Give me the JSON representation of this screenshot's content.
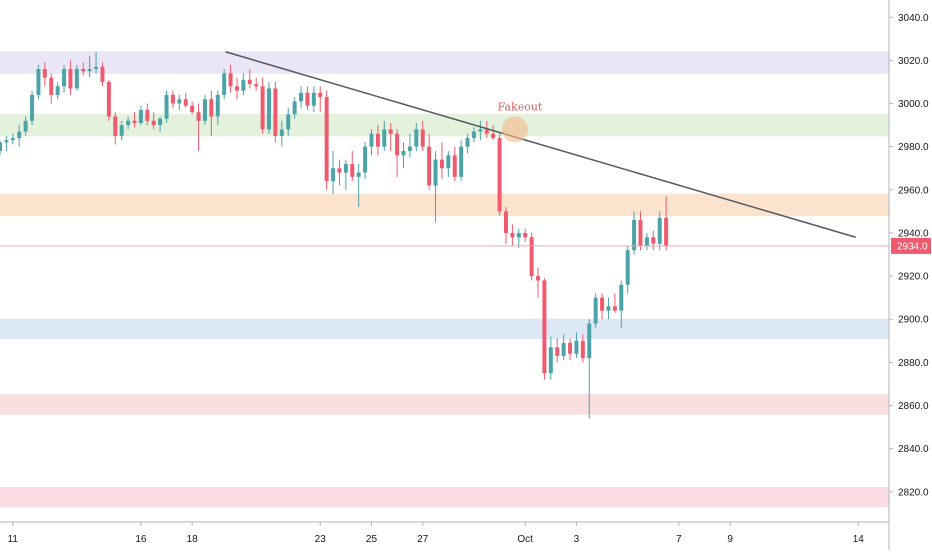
{
  "chart_data": {
    "type": "candlestick",
    "title": "",
    "xlabel": "",
    "ylabel": "",
    "ylim": [
      2806,
      3048
    ],
    "y_ticks": [
      3040,
      3020,
      3000,
      2980,
      2960,
      2940,
      2920,
      2900,
      2880,
      2860,
      2840,
      2820
    ],
    "y_tick_labels": [
      "3040.0",
      "3020.0",
      "3000.0",
      "2980.0",
      "2960.0",
      "2940.0",
      "2920.0",
      "2900.0",
      "2880.0",
      "2860.0",
      "2840.0",
      "2820.0"
    ],
    "x_ticks": [
      {
        "label": "11",
        "day": 11
      },
      {
        "label": "16",
        "day": 16
      },
      {
        "label": "18",
        "day": 18
      },
      {
        "label": "23",
        "day": 23
      },
      {
        "label": "25",
        "day": 25
      },
      {
        "label": "27",
        "day": 27
      },
      {
        "label": "Oct",
        "day": 31
      },
      {
        "label": "3",
        "day": 33
      },
      {
        "label": "7",
        "day": 37
      },
      {
        "label": "9",
        "day": 39
      },
      {
        "label": "14",
        "day": 44
      }
    ],
    "x_range": [
      10.5,
      45.2
    ],
    "grid": false,
    "current_price": {
      "value": 2934.0,
      "label": "2934.0",
      "color": "#ef5a6f"
    },
    "zones": [
      {
        "low": 3014,
        "high": 3024,
        "color": "#ebe6f6"
      },
      {
        "low": 2985,
        "high": 2995,
        "color": "#e3f1dd"
      },
      {
        "low": 2948,
        "high": 2958,
        "color": "#fbe3cd"
      },
      {
        "low": 2891,
        "high": 2900,
        "color": "#dde8f6"
      },
      {
        "low": 2856,
        "high": 2865,
        "color": "#f9dede"
      },
      {
        "low": 2813,
        "high": 2822,
        "color": "#fbdde3"
      }
    ],
    "trendline": {
      "x1": 19.3,
      "y1": 3024,
      "x2": 43.9,
      "y2": 2938,
      "color": "#555a60"
    },
    "annotation": {
      "text": "Fakeout",
      "x": 30.6,
      "y": 2988,
      "circle_color": "#f6b98a"
    },
    "candles_period_days": 0.25,
    "candles_start_day": 10.5,
    "bull_color": "#4ba3a8",
    "bear_color": "#ef5a6f",
    "candles": [
      [
        2978,
        2983,
        2976,
        2982
      ],
      [
        2982,
        2985,
        2978,
        2983
      ],
      [
        2983,
        2986,
        2981,
        2984
      ],
      [
        2984,
        2990,
        2980,
        2987
      ],
      [
        2987,
        2994,
        2985,
        2992
      ],
      [
        2992,
        3006,
        2990,
        3004
      ],
      [
        3004,
        3018,
        3002,
        3016
      ],
      [
        3016,
        3019,
        3008,
        3012
      ],
      [
        3012,
        3014,
        3000,
        3004
      ],
      [
        3004,
        3010,
        3002,
        3008
      ],
      [
        3008,
        3018,
        3005,
        3016
      ],
      [
        3016,
        3020,
        3004,
        3007
      ],
      [
        3007,
        3018,
        3006,
        3016
      ],
      [
        3016,
        3019,
        3013,
        3015
      ],
      [
        3015,
        3022,
        3012,
        3016
      ],
      [
        3016,
        3024,
        3014,
        3017
      ],
      [
        3017,
        3019,
        3008,
        3010
      ],
      [
        3010,
        3011,
        2992,
        2994
      ],
      [
        2994,
        2996,
        2981,
        2985
      ],
      [
        2985,
        2992,
        2983,
        2990
      ],
      [
        2990,
        2994,
        2988,
        2992
      ],
      [
        2992,
        2996,
        2989,
        2991
      ],
      [
        2991,
        2999,
        2990,
        2997
      ],
      [
        2997,
        3000,
        2990,
        2992
      ],
      [
        2992,
        2996,
        2988,
        2990
      ],
      [
        2990,
        2994,
        2987,
        2993
      ],
      [
        2993,
        3006,
        2991,
        3004
      ],
      [
        3004,
        3006,
        2998,
        3000
      ],
      [
        3000,
        3004,
        2997,
        3002
      ],
      [
        3002,
        3005,
        2998,
        2999
      ],
      [
        2999,
        3001,
        2995,
        2996
      ],
      [
        2996,
        3000,
        2978,
        2992
      ],
      [
        2992,
        3004,
        2990,
        3002
      ],
      [
        3002,
        3006,
        2985,
        2994
      ],
      [
        2994,
        3006,
        2990,
        3004
      ],
      [
        3004,
        3016,
        3002,
        3014
      ],
      [
        3014,
        3018,
        3005,
        3008
      ],
      [
        3008,
        3012,
        3002,
        3006
      ],
      [
        3006,
        3014,
        3004,
        3011
      ],
      [
        3011,
        3016,
        3007,
        3009
      ],
      [
        3009,
        3012,
        3006,
        3008
      ],
      [
        3008,
        3012,
        2986,
        2988
      ],
      [
        2988,
        3010,
        2986,
        3007
      ],
      [
        3007,
        3010,
        2982,
        2985
      ],
      [
        2985,
        2992,
        2980,
        2988
      ],
      [
        2988,
        2998,
        2985,
        2995
      ],
      [
        2995,
        3003,
        2993,
        3001
      ],
      [
        3001,
        3008,
        2998,
        3005
      ],
      [
        3005,
        3008,
        2997,
        2999
      ],
      [
        2999,
        3008,
        2996,
        3005
      ],
      [
        3005,
        3008,
        2996,
        3003
      ],
      [
        3003,
        3006,
        2960,
        2964
      ],
      [
        2964,
        2978,
        2958,
        2970
      ],
      [
        2970,
        2974,
        2962,
        2968
      ],
      [
        2968,
        2974,
        2960,
        2972
      ],
      [
        2972,
        2978,
        2964,
        2966
      ],
      [
        2966,
        2972,
        2952,
        2968
      ],
      [
        2968,
        2982,
        2965,
        2980
      ],
      [
        2980,
        2988,
        2976,
        2986
      ],
      [
        2986,
        2990,
        2976,
        2980
      ],
      [
        2980,
        2992,
        2978,
        2988
      ],
      [
        2988,
        2991,
        2978,
        2986
      ],
      [
        2986,
        2988,
        2966,
        2976
      ],
      [
        2976,
        2982,
        2970,
        2978
      ],
      [
        2978,
        2986,
        2975,
        2980
      ],
      [
        2980,
        2991,
        2978,
        2988
      ],
      [
        2988,
        2992,
        2978,
        2980
      ],
      [
        2980,
        2986,
        2960,
        2962
      ],
      [
        2962,
        2978,
        2945,
        2974
      ],
      [
        2974,
        2982,
        2965,
        2970
      ],
      [
        2970,
        2978,
        2966,
        2976
      ],
      [
        2976,
        2980,
        2964,
        2966
      ],
      [
        2966,
        2983,
        2964,
        2980
      ],
      [
        2980,
        2986,
        2977,
        2984
      ],
      [
        2984,
        2989,
        2982,
        2987
      ],
      [
        2987,
        2992,
        2983,
        2988
      ],
      [
        2988,
        2992,
        2984,
        2986
      ],
      [
        2986,
        2990,
        2983,
        2984
      ],
      [
        2984,
        2986,
        2948,
        2950
      ],
      [
        2950,
        2952,
        2935,
        2940
      ],
      [
        2940,
        2944,
        2934,
        2938
      ],
      [
        2938,
        2942,
        2933,
        2940
      ],
      [
        2940,
        2942,
        2936,
        2938
      ],
      [
        2938,
        2940,
        2918,
        2920
      ],
      [
        2920,
        2924,
        2910,
        2918
      ],
      [
        2918,
        2919,
        2872,
        2875
      ],
      [
        2875,
        2892,
        2872,
        2887
      ],
      [
        2887,
        2891,
        2880,
        2883
      ],
      [
        2883,
        2893,
        2881,
        2889
      ],
      [
        2889,
        2891,
        2881,
        2884
      ],
      [
        2884,
        2894,
        2882,
        2890
      ],
      [
        2890,
        2893,
        2880,
        2882
      ],
      [
        2882,
        2900,
        2854,
        2898
      ],
      [
        2898,
        2912,
        2896,
        2910
      ],
      [
        2910,
        2912,
        2900,
        2904
      ],
      [
        2904,
        2910,
        2900,
        2906
      ],
      [
        2906,
        2912,
        2903,
        2904
      ],
      [
        2904,
        2918,
        2896,
        2916
      ],
      [
        2916,
        2934,
        2912,
        2932
      ],
      [
        2932,
        2950,
        2930,
        2946
      ],
      [
        2946,
        2950,
        2932,
        2934
      ],
      [
        2934,
        2940,
        2932,
        2938
      ],
      [
        2938,
        2941,
        2932,
        2935
      ],
      [
        2935,
        2950,
        2932,
        2947
      ],
      [
        2947,
        2957,
        2932,
        2934
      ]
    ]
  }
}
